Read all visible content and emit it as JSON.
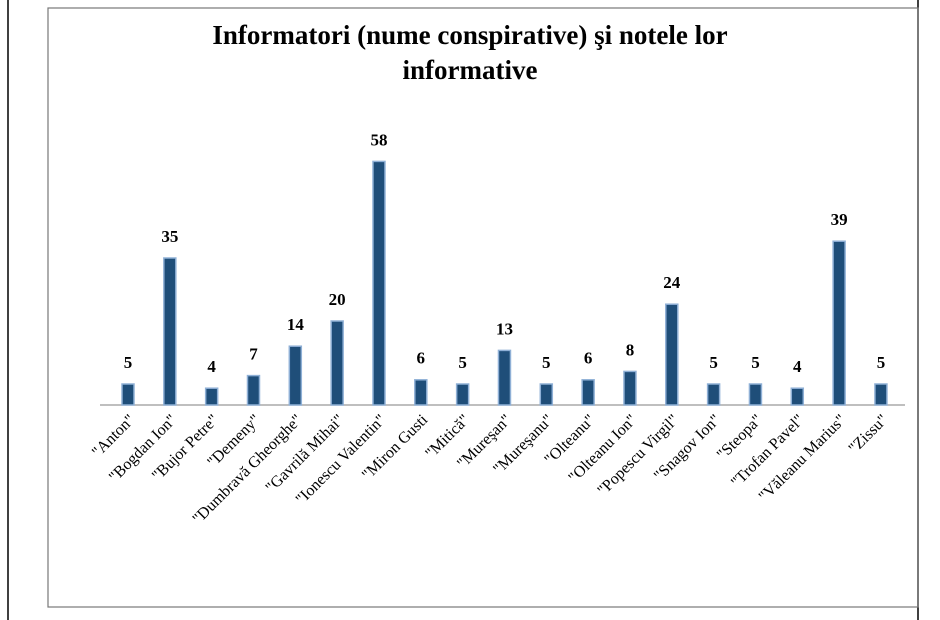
{
  "chart_data": {
    "type": "bar",
    "title": [
      "Informatori (nume conspirative) şi notele lor",
      "informative"
    ],
    "categories": [
      "\"Anton\"",
      "\"Bogdan Ion\"",
      "\"Bujor Petre\"",
      "\"Demeny\"",
      "\"Dumbravă Gheorghe\"",
      "\"Gavrilă Mihai\"",
      "\"Ionescu Valentin\"",
      "\"Miron Gusti",
      "\"Mitică\"",
      "\"Mureşan\"",
      "\"Mureşanu\"",
      "\"Olteanu\"",
      "\"Olteanu Ion\"",
      "\"Popescu Virgil\"",
      "\"Snagov Ion\"",
      "\"Steopa\"",
      "\"Trofan Pavel\"",
      "\"Văleanu Marius\"",
      "\"Zissu\""
    ],
    "values": [
      5,
      35,
      4,
      7,
      14,
      20,
      58,
      6,
      5,
      13,
      5,
      6,
      8,
      24,
      5,
      5,
      4,
      39,
      5
    ],
    "color": "#1f4e79"
  }
}
